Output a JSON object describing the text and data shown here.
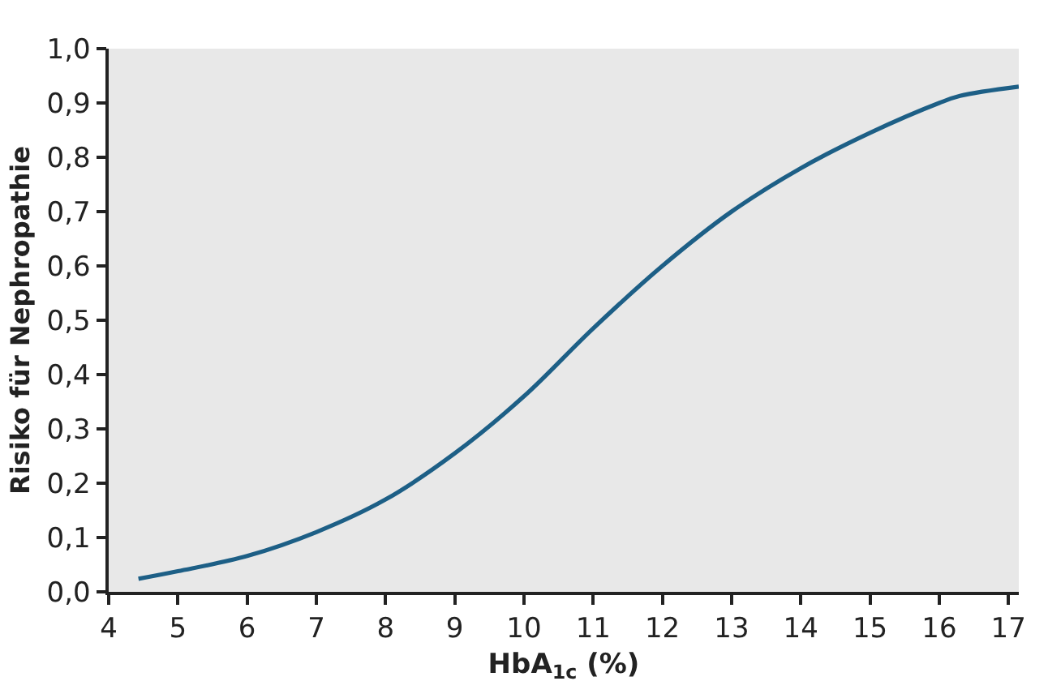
{
  "chart_data": {
    "type": "line",
    "xlabel": "HbA$_{1c}$ (%)",
    "ylabel": "Risiko für Nephropathie",
    "x": [
      4.43,
      5,
      6,
      7,
      8,
      9,
      10,
      11,
      12,
      13,
      14,
      15,
      16,
      16.3,
      17.15
    ],
    "series": [
      {
        "color": "#1d5f86",
        "values": [
          0.024,
          0.038,
          0.066,
          0.11,
          0.17,
          0.255,
          0.36,
          0.485,
          0.6,
          0.7,
          0.78,
          0.845,
          0.9,
          0.913,
          0.93
        ]
      }
    ],
    "xlim": [
      4,
      17.15
    ],
    "xticks": [
      4,
      5,
      6,
      7,
      8,
      9,
      10,
      11,
      12,
      13,
      14,
      15,
      16,
      17
    ],
    "ylim": [
      0,
      1
    ],
    "yticks": [
      {
        "value": 0,
        "label": "0,0"
      },
      {
        "value": 0.1,
        "label": "0,1"
      },
      {
        "value": 0.2,
        "label": "0,2"
      },
      {
        "value": 0.3,
        "label": "0,3"
      },
      {
        "value": 0.4,
        "label": "0,4"
      },
      {
        "value": 0.5,
        "label": "0,5"
      },
      {
        "value": 0.6,
        "label": "0,6"
      },
      {
        "value": 0.7,
        "label": "0,7"
      },
      {
        "value": 0.8,
        "label": "0,8"
      },
      {
        "value": 0.9,
        "label": "0,9"
      },
      {
        "value": 1,
        "label": "1,0"
      }
    ],
    "grid": false,
    "marker": "none",
    "line_style": "solid"
  }
}
